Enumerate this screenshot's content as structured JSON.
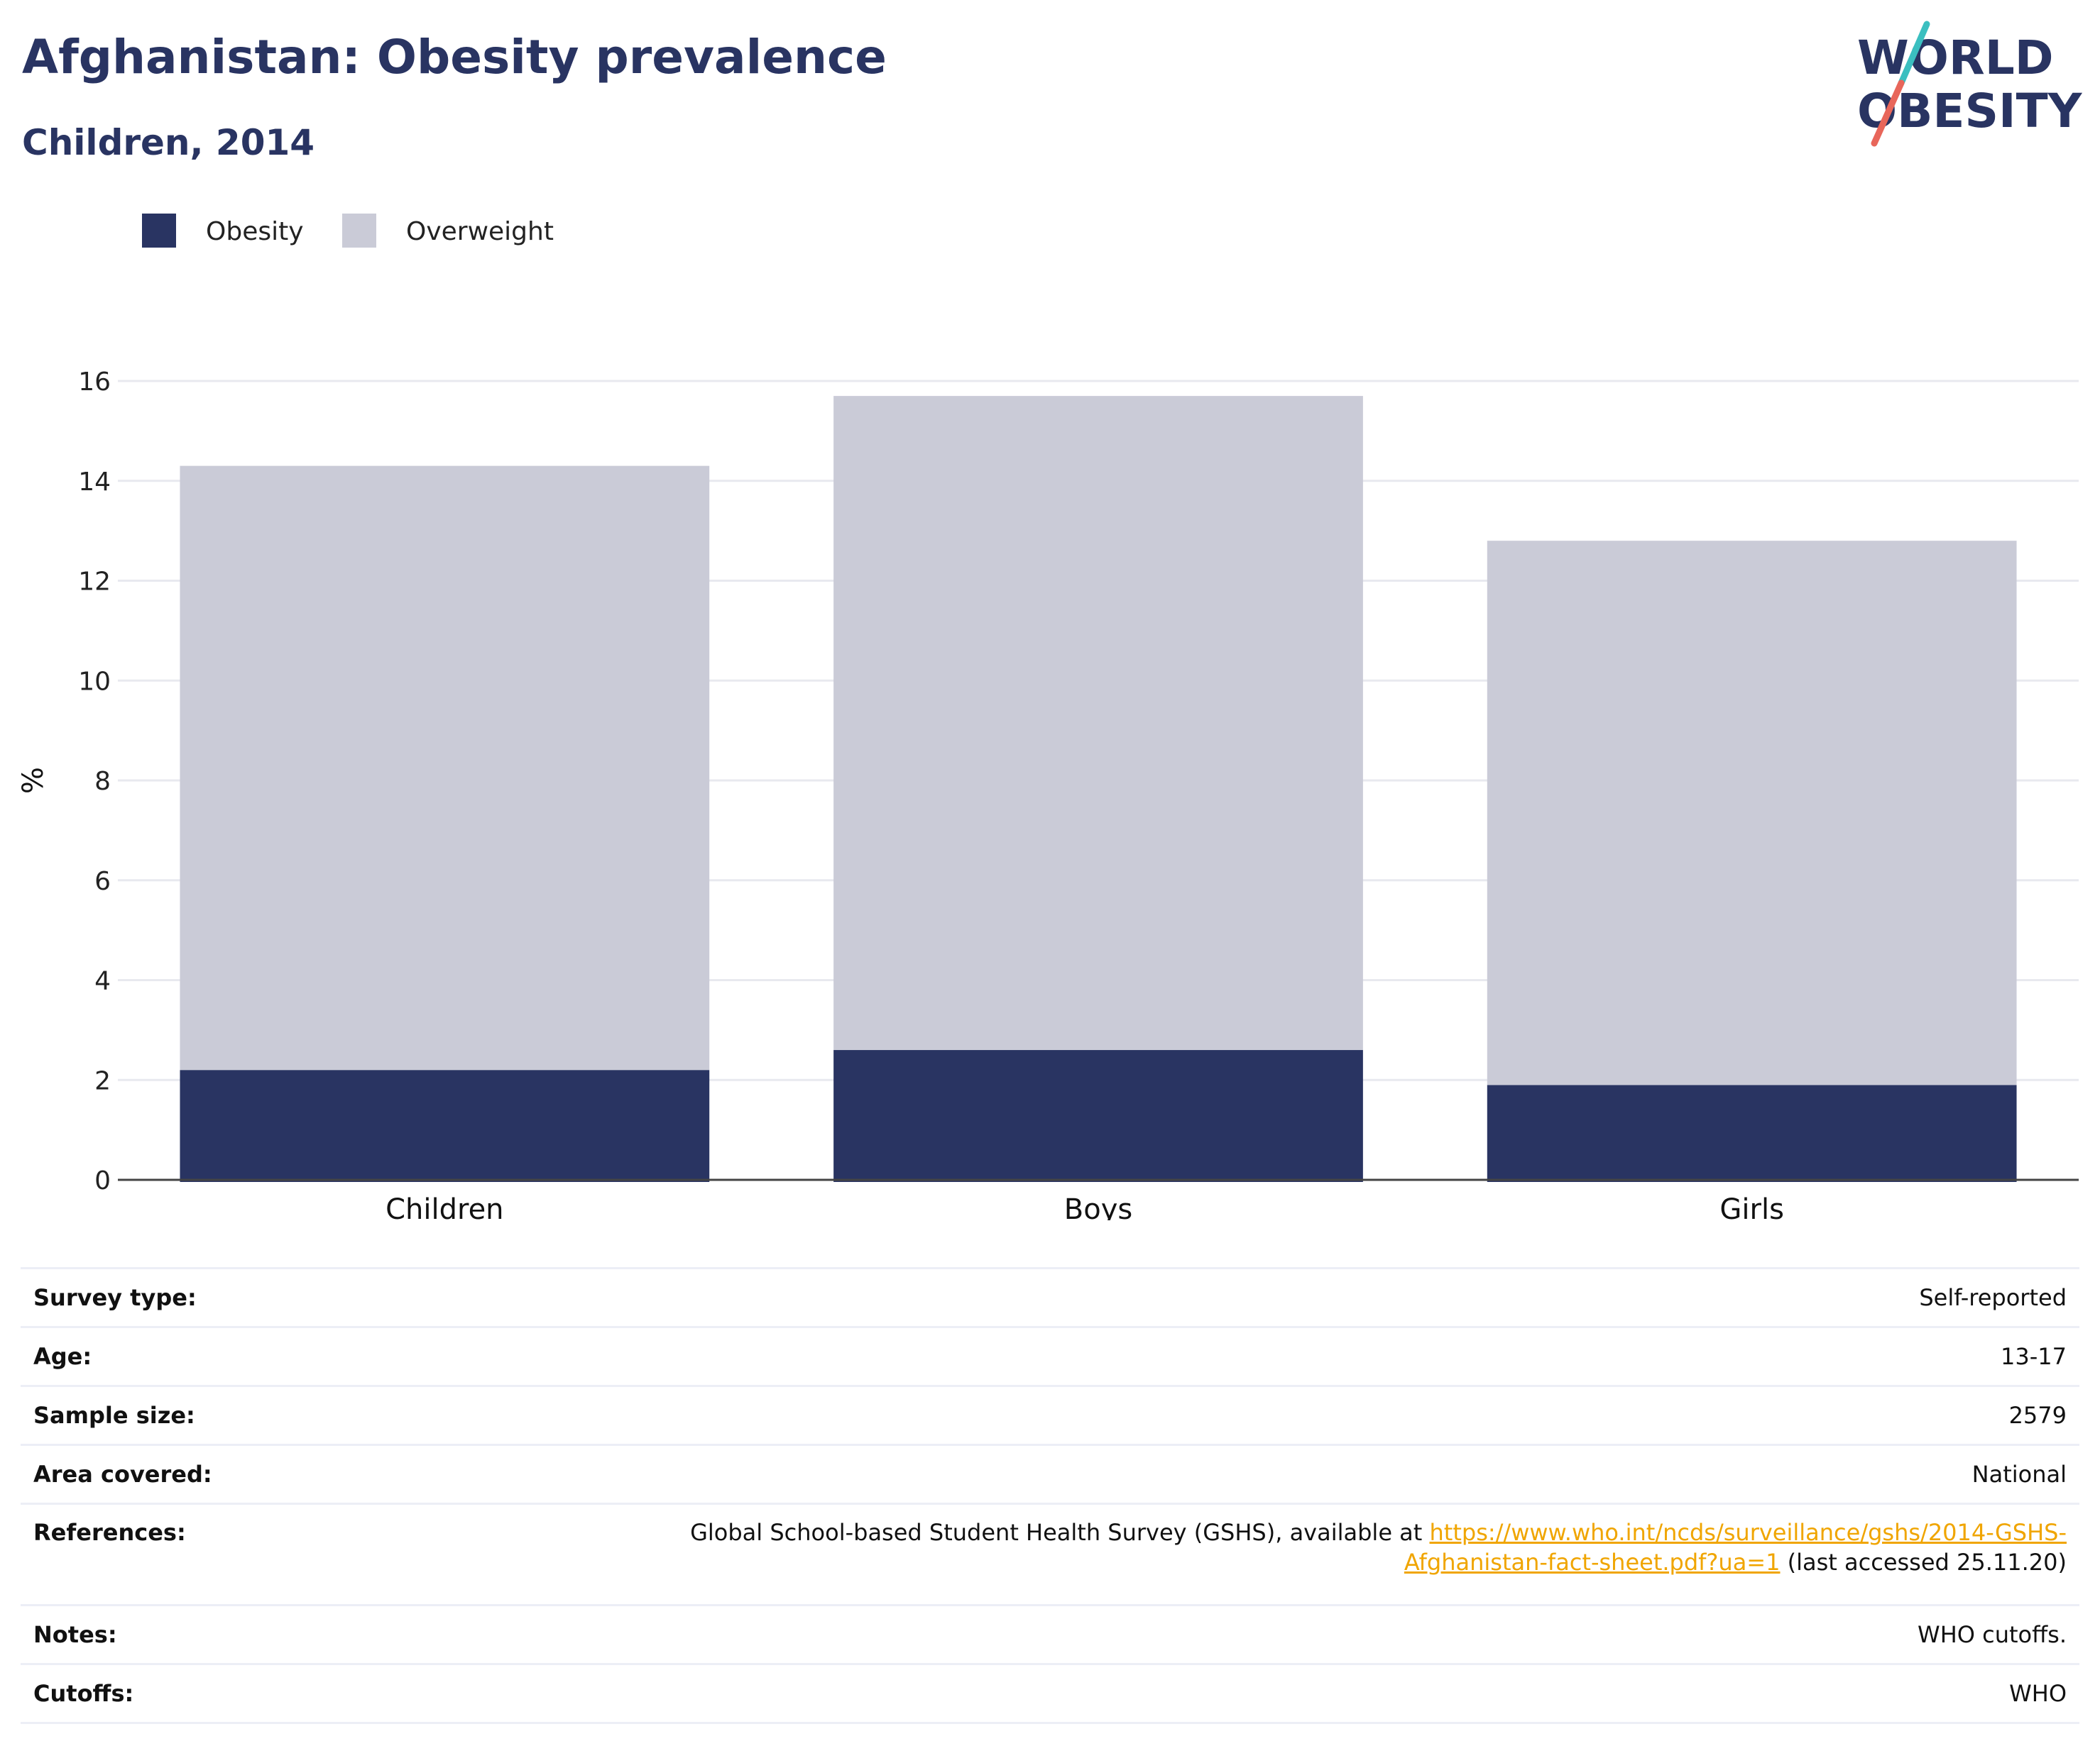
{
  "header": {
    "title": "Afghanistan: Obesity prevalence",
    "subtitle": "Children, 2014"
  },
  "logo": {
    "line1": "WORLD",
    "line2": "OBESITY"
  },
  "colors": {
    "obesity": "#293462",
    "overweight": "#cacbd7",
    "accent_teal": "#3bbfc0",
    "accent_coral": "#e8665a",
    "link": "#f0a500"
  },
  "chart_data": {
    "type": "bar",
    "stacked": true,
    "categories": [
      "Children",
      "Boys",
      "Girls"
    ],
    "series": [
      {
        "name": "Obesity",
        "values": [
          2.2,
          2.6,
          1.9
        ]
      },
      {
        "name": "Overweight",
        "values": [
          12.1,
          13.1,
          10.9
        ]
      }
    ],
    "ylabel": "%",
    "ylim": [
      0,
      16
    ],
    "yticks": [
      0,
      2,
      4,
      6,
      8,
      10,
      12,
      14,
      16
    ],
    "grid": true,
    "legend_position": "top-left"
  },
  "info": {
    "survey_type": {
      "label": "Survey type:",
      "value": "Self-reported"
    },
    "age": {
      "label": "Age:",
      "value": "13-17"
    },
    "sample_size": {
      "label": "Sample size:",
      "value": "2579"
    },
    "area_covered": {
      "label": "Area covered:",
      "value": "National"
    },
    "references": {
      "label": "References:",
      "text_before": "Global School-based Student Health Survey (GSHS), available at ",
      "link_line1": "https://www.who.int/ncds/surveillance/gshs/2014-GSHS-",
      "link_line2": "Afghanistan-fact-sheet.pdf?ua=1",
      "text_after": " (last accessed 25.11.20)"
    },
    "notes": {
      "label": "Notes:",
      "value": "WHO cutoffs."
    },
    "cutoffs": {
      "label": "Cutoffs:",
      "value": "WHO"
    }
  }
}
